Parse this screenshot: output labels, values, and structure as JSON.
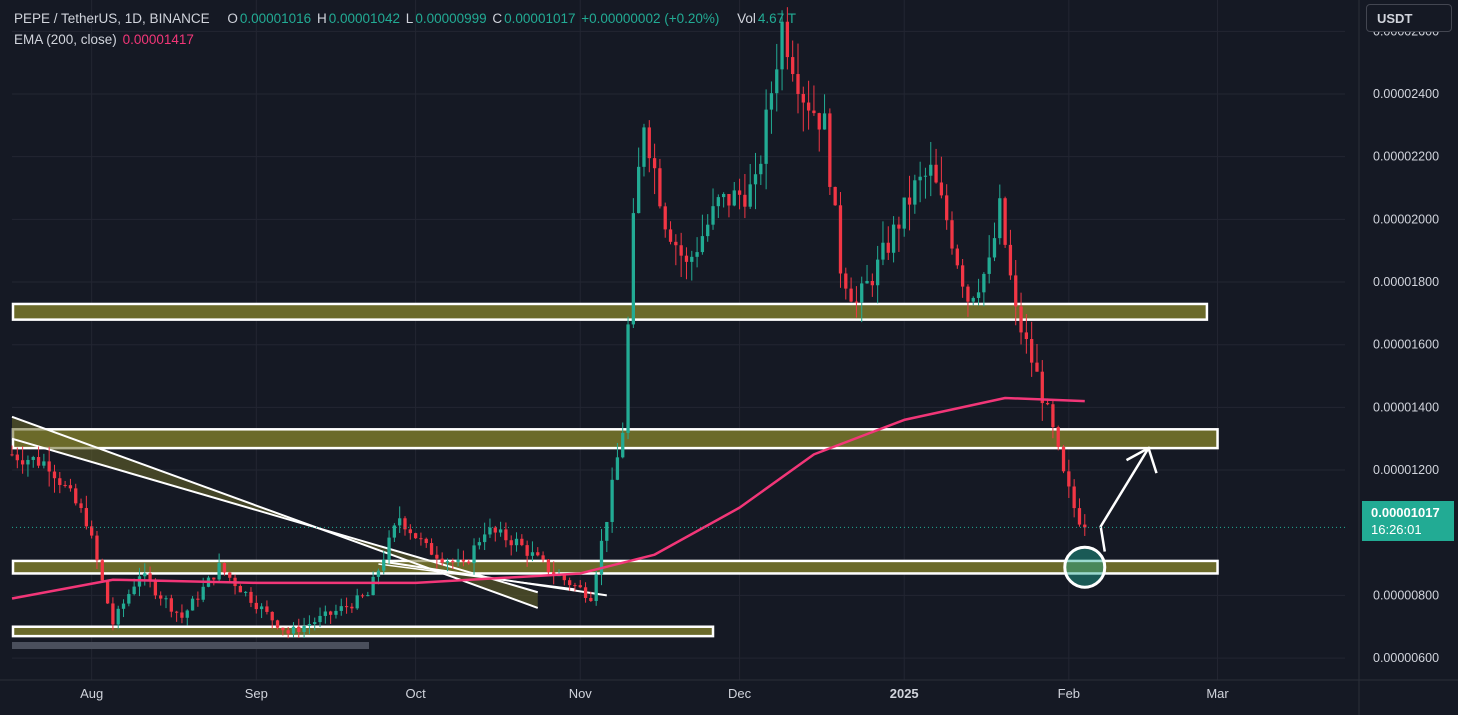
{
  "legend": {
    "symbol": "PEPE / TetherUS, 1D, BINANCE",
    "o_label": "O",
    "o": "0.00001016",
    "h_label": "H",
    "h": "0.00001042",
    "l_label": "L",
    "l": "0.00000999",
    "c_label": "C",
    "c": "0.00001017",
    "change": "+0.00000002 (+0.20%)",
    "vol_label": "Vol",
    "vol": "4.67 T",
    "ema_label": "EMA (200, close)",
    "ema_value": "0.00001417"
  },
  "currency_button": "USDT",
  "last_price": {
    "value": "0.00001017",
    "countdown": "16:26:01"
  },
  "colors": {
    "bg": "#151924",
    "up": "#22ab94",
    "down": "#f23645",
    "ema": "#f23678",
    "zone": "#6b6a2a",
    "grid": "#232632",
    "text": "#d1d4dc"
  },
  "chart_data": {
    "type": "candlestick",
    "y_unit": "USDT",
    "y_ticks": [
      "0.00002600",
      "0.00002400",
      "0.00002200",
      "0.00002000",
      "0.00001800",
      "0.00001600",
      "0.00001400",
      "0.00001200",
      "0.00000800",
      "0.00000600"
    ],
    "ylim": [
      5.3e-06,
      2.7e-05
    ],
    "x_ticks": [
      "Aug",
      "Sep",
      "Oct",
      "Nov",
      "Dec",
      "2025",
      "Feb",
      "Mar"
    ],
    "x_tick_dates": [
      "2024-08-01",
      "2024-09-01",
      "2024-10-01",
      "2024-11-01",
      "2024-12-01",
      "2025-01-01",
      "2025-02-01",
      "2025-03-01"
    ],
    "x_range": [
      "2024-07-17",
      "2025-03-25"
    ],
    "grid": true,
    "price_key_points": [
      {
        "date": "2024-07-17",
        "price": 1.25e-05
      },
      {
        "date": "2024-07-24",
        "price": 1.22e-05
      },
      {
        "date": "2024-07-31",
        "price": 1.04e-05
      },
      {
        "date": "2024-08-05",
        "price": 7.1e-06
      },
      {
        "date": "2024-08-10",
        "price": 8.7e-06
      },
      {
        "date": "2024-08-18",
        "price": 7.3e-06
      },
      {
        "date": "2024-08-25",
        "price": 8.9e-06
      },
      {
        "date": "2024-09-03",
        "price": 7.4e-06
      },
      {
        "date": "2024-09-07",
        "price": 6.8e-06
      },
      {
        "date": "2024-09-15",
        "price": 7.4e-06
      },
      {
        "date": "2024-09-22",
        "price": 8e-06
      },
      {
        "date": "2024-09-28",
        "price": 1.05e-05
      },
      {
        "date": "2024-10-03",
        "price": 9.5e-06
      },
      {
        "date": "2024-10-10",
        "price": 8.9e-06
      },
      {
        "date": "2024-10-14",
        "price": 1.01e-05
      },
      {
        "date": "2024-10-20",
        "price": 9.7e-06
      },
      {
        "date": "2024-10-27",
        "price": 8.7e-06
      },
      {
        "date": "2024-11-03",
        "price": 8e-06
      },
      {
        "date": "2024-11-06",
        "price": 1.05e-05
      },
      {
        "date": "2024-11-09",
        "price": 1.33e-05
      },
      {
        "date": "2024-11-11",
        "price": 1.98e-05
      },
      {
        "date": "2024-11-13",
        "price": 2.32e-05
      },
      {
        "date": "2024-11-17",
        "price": 2e-05
      },
      {
        "date": "2024-11-21",
        "price": 1.85e-05
      },
      {
        "date": "2024-11-27",
        "price": 2.05e-05
      },
      {
        "date": "2024-12-04",
        "price": 2.1e-05
      },
      {
        "date": "2024-12-09",
        "price": 2.62e-05
      },
      {
        "date": "2024-12-13",
        "price": 2.4e-05
      },
      {
        "date": "2024-12-17",
        "price": 2.3e-05
      },
      {
        "date": "2024-12-20",
        "price": 1.85e-05
      },
      {
        "date": "2024-12-23",
        "price": 1.73e-05
      },
      {
        "date": "2024-12-27",
        "price": 1.85e-05
      },
      {
        "date": "2025-01-03",
        "price": 2.1e-05
      },
      {
        "date": "2025-01-06",
        "price": 2.15e-05
      },
      {
        "date": "2025-01-09",
        "price": 2e-05
      },
      {
        "date": "2025-01-13",
        "price": 1.75e-05
      },
      {
        "date": "2025-01-17",
        "price": 1.85e-05
      },
      {
        "date": "2025-01-19",
        "price": 2.03e-05
      },
      {
        "date": "2025-01-22",
        "price": 1.7e-05
      },
      {
        "date": "2025-01-26",
        "price": 1.5e-05
      },
      {
        "date": "2025-01-29",
        "price": 1.32e-05
      },
      {
        "date": "2025-01-31",
        "price": 1.18e-05
      },
      {
        "date": "2025-02-02",
        "price": 1.08e-05
      },
      {
        "date": "2025-02-04",
        "price": 1.01e-05
      }
    ],
    "ema_200_key_points": [
      {
        "date": "2024-07-17",
        "value": 7.9e-06
      },
      {
        "date": "2024-08-05",
        "value": 8.5e-06
      },
      {
        "date": "2024-09-01",
        "value": 8.4e-06
      },
      {
        "date": "2024-10-01",
        "value": 8.4e-06
      },
      {
        "date": "2024-11-01",
        "value": 8.7e-06
      },
      {
        "date": "2024-11-15",
        "value": 9.3e-06
      },
      {
        "date": "2024-12-01",
        "value": 1.08e-05
      },
      {
        "date": "2024-12-15",
        "value": 1.25e-05
      },
      {
        "date": "2025-01-01",
        "value": 1.36e-05
      },
      {
        "date": "2025-01-20",
        "value": 1.43e-05
      },
      {
        "date": "2025-02-04",
        "value": 1.42e-05
      }
    ],
    "zones": [
      {
        "low": 1.68e-05,
        "high": 1.73e-05,
        "from": "2024-07-17",
        "to": "2025-02-27"
      },
      {
        "low": 1.27e-05,
        "high": 1.33e-05,
        "from": "2024-07-17",
        "to": "2025-03-01"
      },
      {
        "low": 8.7e-06,
        "high": 9.1e-06,
        "from": "2024-07-17",
        "to": "2025-03-01"
      },
      {
        "low": 6.7e-06,
        "high": 7e-06,
        "from": "2024-07-17",
        "to": "2024-11-26"
      }
    ],
    "trend_channel": [
      {
        "from": {
          "date": "2024-07-17",
          "price": 1.37e-05
        },
        "to": {
          "date": "2024-10-24",
          "price": 7.6e-06
        }
      },
      {
        "from": {
          "date": "2024-07-17",
          "price": 1.3e-05
        },
        "to": {
          "date": "2024-10-24",
          "price": 8.1e-06
        }
      }
    ],
    "annotations": [
      {
        "type": "circle",
        "date": "2025-02-04",
        "price": 8.9e-06
      },
      {
        "type": "arrow",
        "from": {
          "date": "2025-02-07",
          "price": 1.02e-05
        },
        "to": {
          "date": "2025-02-16",
          "price": 1.27e-05
        }
      }
    ]
  }
}
